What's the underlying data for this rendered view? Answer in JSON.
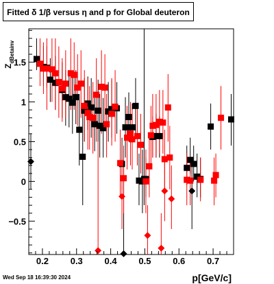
{
  "title": "Fitted δ 1/β versus η and p for Global deuteron",
  "date_stamp": "Wed Sep 18 16:39:30 2024",
  "chart_data": {
    "type": "scatter",
    "title": "Fitted δ 1/β versus η and p for Global deuteron",
    "xlabel": "p[GeV/c]",
    "ylabel": "Z_dBetainv",
    "xlim": [
      0.16,
      0.76
    ],
    "ylim": [
      -0.92,
      1.92
    ],
    "x_ticks": [
      0.2,
      0.3,
      0.4,
      0.5,
      0.6,
      0.7
    ],
    "x_tick_labels": [
      "0.2",
      "0.3",
      "0.4",
      "0.5",
      "0.6",
      "0.7"
    ],
    "y_ticks": [
      -0.5,
      0,
      0.5,
      1,
      1.5
    ],
    "y_tick_labels": [
      "−0.5",
      "0",
      "0.5",
      "1",
      "1.5"
    ],
    "grid": false,
    "colors": {
      "black_series": "#000000",
      "red_series": "#ff0000"
    },
    "series": [
      {
        "color": "#000000",
        "points": [
          {
            "x": 0.183,
            "y": 1.54,
            "lo": 1.4,
            "hi": 1.8
          },
          {
            "x": 0.203,
            "y": 1.44,
            "lo": 1.2,
            "hi": 1.7
          },
          {
            "x": 0.213,
            "y": 1.43,
            "lo": 1.18,
            "hi": 1.7
          },
          {
            "x": 0.223,
            "y": 1.28,
            "lo": 1.0,
            "hi": 1.55
          },
          {
            "x": 0.238,
            "y": 1.24,
            "lo": 0.9,
            "hi": 1.58
          },
          {
            "x": 0.258,
            "y": 1.15,
            "lo": 0.8,
            "hi": 1.5
          },
          {
            "x": 0.268,
            "y": 1.06,
            "lo": 0.7,
            "hi": 1.4
          },
          {
            "x": 0.278,
            "y": 1.04,
            "lo": 0.68,
            "hi": 1.4
          },
          {
            "x": 0.288,
            "y": 0.99,
            "lo": 0.6,
            "hi": 1.38
          },
          {
            "x": 0.298,
            "y": 1.06,
            "lo": 0.72,
            "hi": 1.4
          },
          {
            "x": 0.308,
            "y": 0.65,
            "lo": 0.2,
            "hi": 1.1
          },
          {
            "x": 0.318,
            "y": 0.31,
            "lo": -0.3,
            "hi": 0.9
          },
          {
            "x": 0.323,
            "y": 0.89,
            "lo": 0.5,
            "hi": 1.3
          },
          {
            "x": 0.333,
            "y": 0.98,
            "lo": 0.65,
            "hi": 1.32
          },
          {
            "x": 0.343,
            "y": 0.93,
            "lo": 0.55,
            "hi": 1.3
          },
          {
            "x": 0.353,
            "y": 0.72,
            "lo": 0.38,
            "hi": 1.05
          },
          {
            "x": 0.363,
            "y": 0.89,
            "lo": 0.5,
            "hi": 1.28
          },
          {
            "x": 0.368,
            "y": 0.7,
            "lo": 0.3,
            "hi": 1.1
          },
          {
            "x": 0.378,
            "y": 0.67,
            "lo": 0.3,
            "hi": 1.05
          },
          {
            "x": 0.393,
            "y": 0.88,
            "lo": 0.5,
            "hi": 1.25
          },
          {
            "x": 0.403,
            "y": 0.91,
            "lo": 0.55,
            "hi": 1.28
          },
          {
            "x": 0.418,
            "y": 0.92,
            "lo": 0.6,
            "hi": 1.25
          },
          {
            "x": 0.433,
            "y": 0.22,
            "lo": -0.1,
            "hi": 0.55
          },
          {
            "x": 0.438,
            "y": -0.91,
            "lo": -0.92,
            "hi": 0.2
          },
          {
            "x": 0.443,
            "y": 0.68,
            "lo": 0.3,
            "hi": 1.06
          },
          {
            "x": 0.453,
            "y": 0.81,
            "lo": 0.5,
            "hi": 1.12
          },
          {
            "x": 0.463,
            "y": 0.68,
            "lo": 0.38,
            "hi": 0.98
          },
          {
            "x": 0.473,
            "y": 0.95,
            "lo": 0.6,
            "hi": 1.3
          },
          {
            "x": 0.483,
            "y": 0.01,
            "lo": -0.3,
            "hi": 0.35
          },
          {
            "x": 0.493,
            "y": 0.0,
            "lo": -0.4,
            "hi": 0.4
          },
          {
            "x": 0.498,
            "y": 0.03,
            "lo": -0.3,
            "hi": 1.92
          },
          {
            "x": 0.503,
            "y": 0.03,
            "lo": -0.2,
            "hi": 0.3
          },
          {
            "x": 0.523,
            "y": 0.56,
            "lo": 0.3,
            "hi": 0.82
          },
          {
            "x": 0.533,
            "y": 0.57,
            "lo": 0.3,
            "hi": 0.85
          },
          {
            "x": 0.543,
            "y": 0.57,
            "lo": 0.3,
            "hi": 0.82
          },
          {
            "x": 0.623,
            "y": 0.17,
            "lo": -0.05,
            "hi": 0.45
          },
          {
            "x": 0.633,
            "y": 0.27,
            "lo": 0.1,
            "hi": 0.55
          },
          {
            "x": 0.643,
            "y": 0.22,
            "lo": 0.0,
            "hi": 0.45
          },
          {
            "x": 0.638,
            "y": -0.12,
            "lo": -0.6,
            "hi": 0.3
          },
          {
            "x": 0.653,
            "y": 0.06,
            "lo": -0.2,
            "hi": 0.35
          },
          {
            "x": 0.663,
            "y": 0.03,
            "lo": -0.2,
            "hi": 0.3
          },
          {
            "x": 0.693,
            "y": 0.69,
            "lo": 0.4,
            "hi": 0.98
          },
          {
            "x": 0.753,
            "y": 0.78,
            "lo": 0.45,
            "hi": 1.1
          },
          {
            "x": 0.166,
            "y": 0.25,
            "lo": -0.1,
            "hi": 0.6
          }
        ]
      },
      {
        "color": "#ff0000",
        "points": [
          {
            "x": 0.193,
            "y": 1.48,
            "lo": 1.2,
            "hi": 1.8
          },
          {
            "x": 0.203,
            "y": 1.42,
            "lo": 1.1,
            "hi": 1.75
          },
          {
            "x": 0.213,
            "y": 1.42,
            "lo": 0.9,
            "hi": 1.8
          },
          {
            "x": 0.228,
            "y": 1.41,
            "lo": 1.0,
            "hi": 1.8
          },
          {
            "x": 0.238,
            "y": 1.36,
            "lo": 0.9,
            "hi": 1.8
          },
          {
            "x": 0.248,
            "y": 1.25,
            "lo": 0.8,
            "hi": 1.7
          },
          {
            "x": 0.258,
            "y": 1.17,
            "lo": 0.75,
            "hi": 1.55
          },
          {
            "x": 0.268,
            "y": 1.23,
            "lo": 0.8,
            "hi": 1.65
          },
          {
            "x": 0.283,
            "y": 1.36,
            "lo": 0.9,
            "hi": 1.8
          },
          {
            "x": 0.293,
            "y": 1.34,
            "lo": 0.9,
            "hi": 1.75
          },
          {
            "x": 0.303,
            "y": 1.18,
            "lo": 0.7,
            "hi": 1.6
          },
          {
            "x": 0.313,
            "y": 1.23,
            "lo": 0.8,
            "hi": 1.65
          },
          {
            "x": 0.323,
            "y": 0.95,
            "lo": 0.5,
            "hi": 1.4
          },
          {
            "x": 0.333,
            "y": 0.86,
            "lo": 0.4,
            "hi": 1.3
          },
          {
            "x": 0.338,
            "y": 0.81,
            "lo": 0.4,
            "hi": 1.2
          },
          {
            "x": 0.348,
            "y": 0.8,
            "lo": 0.35,
            "hi": 1.25
          },
          {
            "x": 0.358,
            "y": 1.09,
            "lo": 0.5,
            "hi": 1.55
          },
          {
            "x": 0.363,
            "y": -0.87,
            "lo": -0.92,
            "hi": 0.5
          },
          {
            "x": 0.373,
            "y": 1.19,
            "lo": 0.6,
            "hi": 1.65
          },
          {
            "x": 0.383,
            "y": 1.18,
            "lo": 0.7,
            "hi": 1.6
          },
          {
            "x": 0.388,
            "y": 0.72,
            "lo": 0.3,
            "hi": 1.1
          },
          {
            "x": 0.403,
            "y": 0.85,
            "lo": 0.45,
            "hi": 1.3
          },
          {
            "x": 0.413,
            "y": 0.94,
            "lo": 0.5,
            "hi": 1.4
          },
          {
            "x": 0.428,
            "y": 0.23,
            "lo": -0.2,
            "hi": 0.65
          },
          {
            "x": 0.433,
            "y": -0.19,
            "lo": -0.6,
            "hi": 0.2
          },
          {
            "x": 0.438,
            "y": 0.04,
            "lo": -0.4,
            "hi": 0.45
          },
          {
            "x": 0.448,
            "y": 0.55,
            "lo": 0.15,
            "hi": 0.95
          },
          {
            "x": 0.458,
            "y": 0.6,
            "lo": 0.2,
            "hi": 1.0
          },
          {
            "x": 0.463,
            "y": 0.53,
            "lo": 0.15,
            "hi": 0.9
          },
          {
            "x": 0.478,
            "y": 0.57,
            "lo": 0.2,
            "hi": 0.95
          },
          {
            "x": 0.488,
            "y": 0.46,
            "lo": 0.1,
            "hi": 0.85
          },
          {
            "x": 0.503,
            "y": 0.0,
            "lo": -0.4,
            "hi": 0.4
          },
          {
            "x": 0.508,
            "y": -0.68,
            "lo": -0.92,
            "hi": -0.3
          },
          {
            "x": 0.513,
            "y": 0.19,
            "lo": -0.2,
            "hi": 0.6
          },
          {
            "x": 0.518,
            "y": 0.58,
            "lo": 0.2,
            "hi": 0.95
          },
          {
            "x": 0.523,
            "y": 0.7,
            "lo": 0.3,
            "hi": 1.1
          },
          {
            "x": 0.533,
            "y": 0.71,
            "lo": 0.3,
            "hi": 1.1
          },
          {
            "x": 0.543,
            "y": 0.75,
            "lo": 0.35,
            "hi": 1.15
          },
          {
            "x": 0.548,
            "y": -0.84,
            "lo": -0.92,
            "hi": -0.4
          },
          {
            "x": 0.553,
            "y": 0.74,
            "lo": 0.35,
            "hi": 1.15
          },
          {
            "x": 0.558,
            "y": -0.12,
            "lo": -0.5,
            "hi": 0.3
          },
          {
            "x": 0.558,
            "y": 0.28,
            "lo": -0.1,
            "hi": 0.65
          },
          {
            "x": 0.568,
            "y": 0.93,
            "lo": 0.5,
            "hi": 1.35
          },
          {
            "x": 0.573,
            "y": 0.3,
            "lo": -0.1,
            "hi": 0.7
          },
          {
            "x": 0.578,
            "y": -0.22,
            "lo": -0.6,
            "hi": 0.2
          },
          {
            "x": 0.623,
            "y": 0.02,
            "lo": -0.3,
            "hi": 0.35
          },
          {
            "x": 0.633,
            "y": 0.01,
            "lo": -0.3,
            "hi": 0.3
          },
          {
            "x": 0.663,
            "y": 0.02,
            "lo": -0.25,
            "hi": 0.3
          },
          {
            "x": 0.703,
            "y": 0.01,
            "lo": -0.3,
            "hi": 0.3
          },
          {
            "x": 0.708,
            "y": 0.08,
            "lo": -0.2,
            "hi": 0.35
          },
          {
            "x": 0.723,
            "y": 0.8,
            "lo": 0.4,
            "hi": 1.2
          }
        ]
      }
    ]
  }
}
